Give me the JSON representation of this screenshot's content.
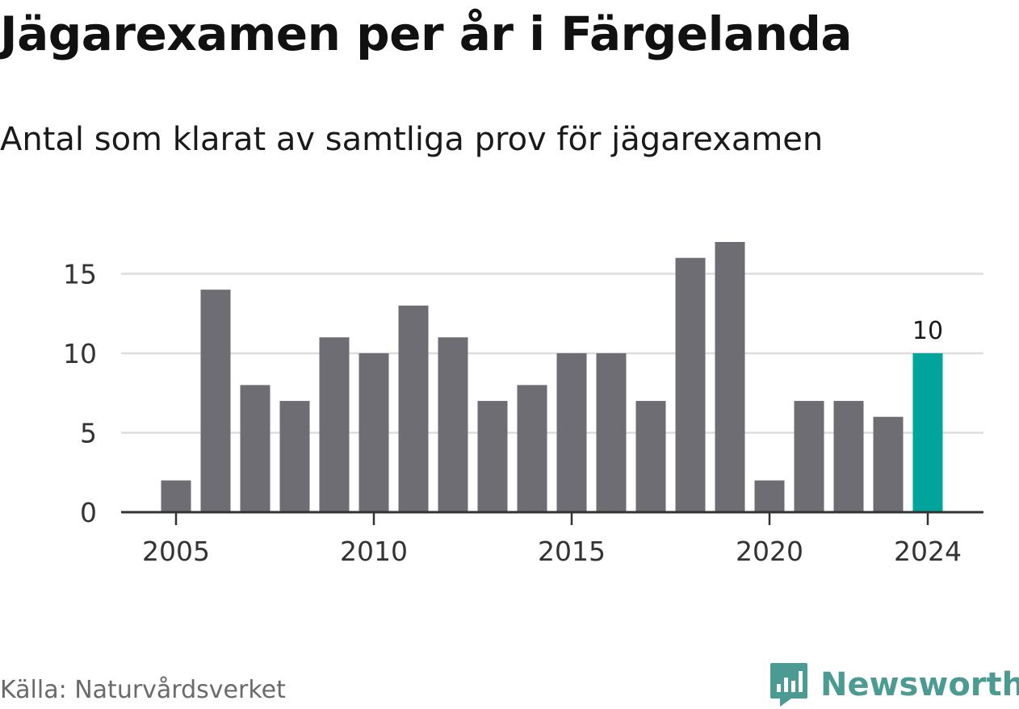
{
  "title": "Jägarexamen per år i Färgelanda",
  "subtitle": "Antal som klarat av samtliga prov för jägarexamen",
  "source": "Källa: Naturvårdsverket",
  "brand": {
    "name": "Newsworthy",
    "icon": "newsworthy-logo-icon"
  },
  "colors": {
    "bar": "#6e6d73",
    "highlight": "#00a49a",
    "grid": "#dddddd",
    "axis": "#333333",
    "brand": "#4b9b93"
  },
  "chart_data": {
    "type": "bar",
    "categories": [
      2005,
      2006,
      2007,
      2008,
      2009,
      2010,
      2011,
      2012,
      2013,
      2014,
      2015,
      2016,
      2017,
      2018,
      2019,
      2020,
      2021,
      2022,
      2023,
      2024
    ],
    "values": [
      2,
      14,
      8,
      7,
      11,
      10,
      13,
      11,
      7,
      8,
      10,
      10,
      7,
      16,
      17,
      2,
      7,
      7,
      6,
      10
    ],
    "xticks": [
      "2005",
      "2010",
      "2015",
      "2020",
      "2024"
    ],
    "yticks": [
      0,
      5,
      10,
      15
    ],
    "ylim": [
      0,
      17
    ],
    "highlight_category": 2024,
    "data_labels": [
      {
        "category": 2024,
        "text": "10"
      }
    ],
    "grid": true
  }
}
